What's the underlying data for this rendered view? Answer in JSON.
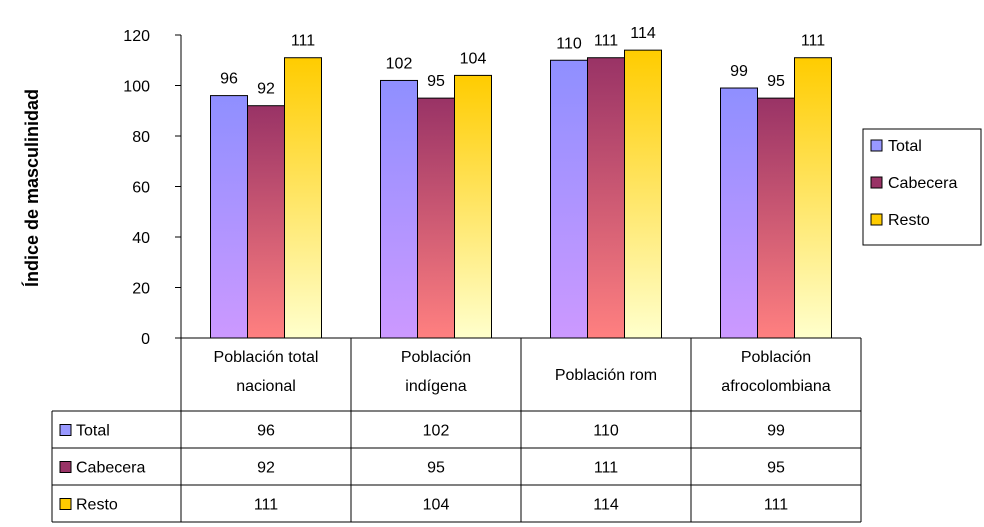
{
  "chart_data": {
    "type": "bar",
    "ylabel": "Índice de masculinidad",
    "ylim": [
      0,
      120
    ],
    "yticks": [
      0,
      20,
      40,
      60,
      80,
      100,
      120
    ],
    "grid": false,
    "legend_position": "right",
    "categories": [
      [
        "Población total",
        "nacional"
      ],
      [
        "Población",
        "indígena"
      ],
      [
        "Población rom"
      ],
      [
        "Población",
        "afrocolombiana"
      ]
    ],
    "series": [
      {
        "name": "Total",
        "values": [
          96,
          102,
          110,
          99
        ],
        "labels": [
          "96",
          "102",
          "110",
          "99"
        ],
        "colors": [
          "#8f8fff",
          "#cc99ff"
        ],
        "swatch": "#9999ff"
      },
      {
        "name": "Cabecera",
        "values": [
          92,
          95,
          111,
          95
        ],
        "labels": [
          "92",
          "95",
          "111",
          "95"
        ],
        "colors": [
          "#993366",
          "#ff8080"
        ],
        "swatch": "#993366"
      },
      {
        "name": "Resto",
        "values": [
          111,
          104,
          114,
          111
        ],
        "labels": [
          "111",
          "104",
          "114",
          "111"
        ],
        "colors": [
          "#ffcc00",
          "#ffffcc"
        ],
        "swatch": "#ffcc00"
      }
    ],
    "data_table": true
  }
}
